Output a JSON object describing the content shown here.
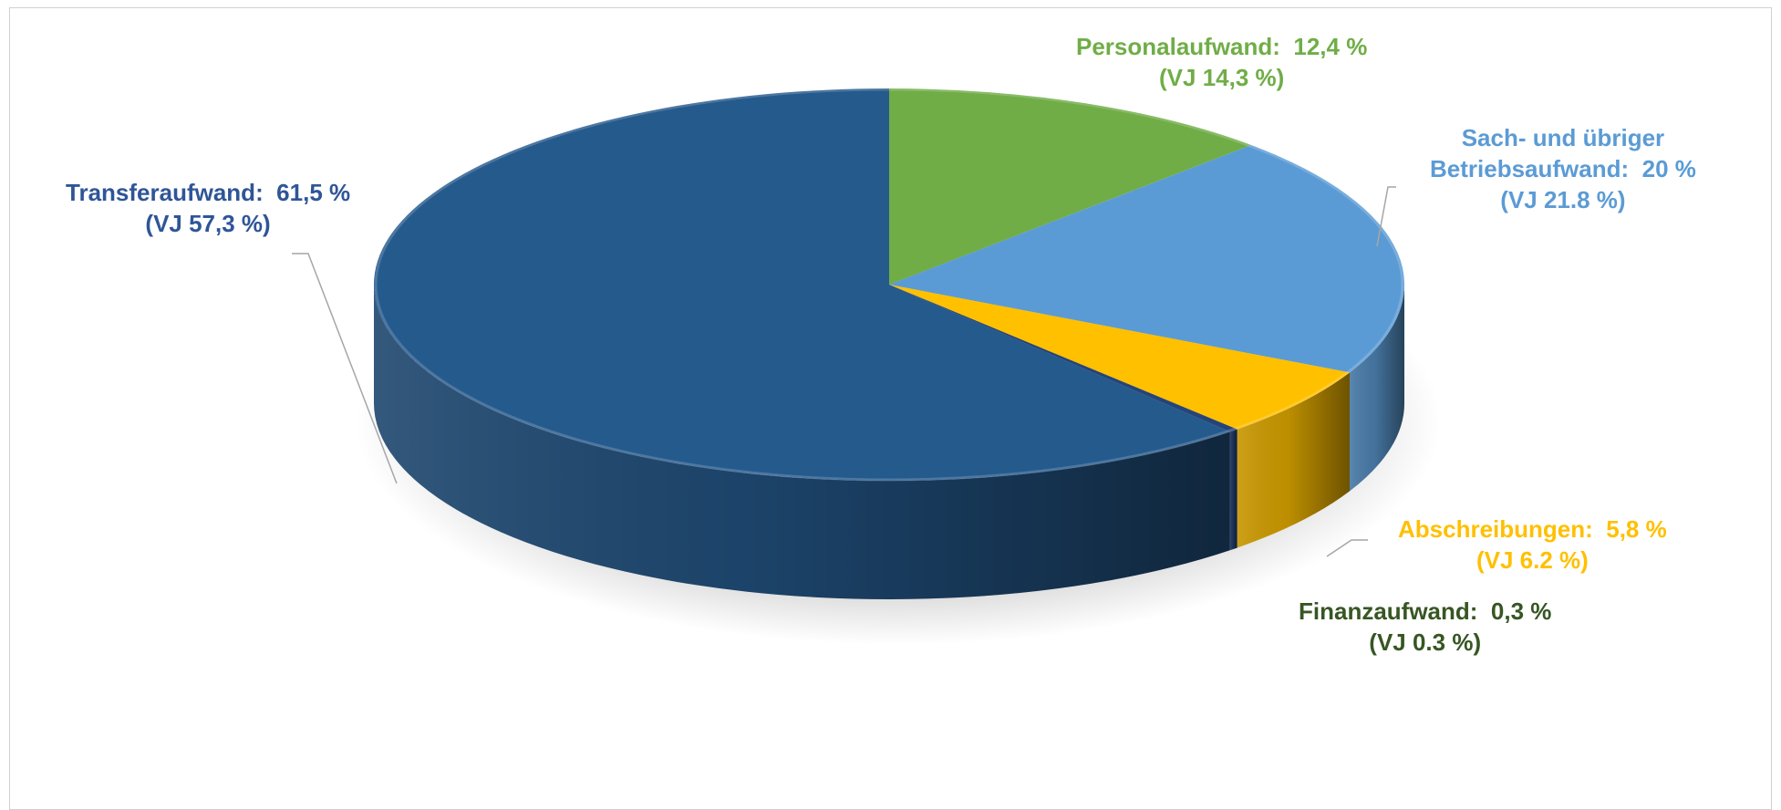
{
  "chart_data": {
    "type": "pie",
    "title": "",
    "slices": [
      {
        "name": "Personalaufwand",
        "value": 12.4,
        "value_label": "12,4 %",
        "prev_label": "(VJ 14,3 %)",
        "color": "#70AD47",
        "label_color": "#70AD47"
      },
      {
        "name": "Sach- und übriger Betriebsaufwand",
        "name_line1": "Sach- und übriger",
        "name_line2": "Betriebsaufwand:",
        "value": 20.0,
        "value_label": "20 %",
        "prev_label": "(VJ 21.8 %)",
        "color": "#5B9BD5",
        "label_color": "#5B9BD5"
      },
      {
        "name": "Abschreibungen",
        "value": 5.8,
        "value_label": "5,8 %",
        "prev_label": "(VJ 6.2 %)",
        "color": "#FFC000",
        "label_color": "#FFC000"
      },
      {
        "name": "Finanzaufwand",
        "value": 0.3,
        "value_label": "0,3 %",
        "prev_label": "(VJ 0.3 %)",
        "color": "#264478",
        "label_color": "#375623"
      },
      {
        "name": "Transferaufwand",
        "value": 61.5,
        "value_label": "61,5 %",
        "prev_label": "(VJ 57,3 %)",
        "color": "#255A8D",
        "label_color": "#2F5597"
      }
    ]
  }
}
